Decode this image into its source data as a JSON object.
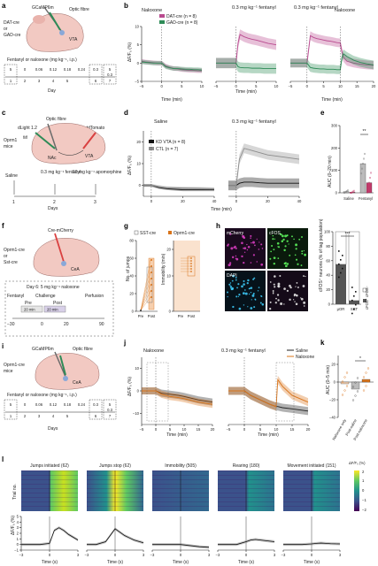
{
  "panels": {
    "a": {
      "label": "a",
      "texts": [
        "DAT-cre",
        "or",
        "GAD-cre",
        "GCaMP6m",
        "Optic fibre",
        "VTA"
      ],
      "dose_label": "Fentanyl or naloxone (mg kg⁻¹, i.p.)",
      "dose_boxes": [
        {
          "top": "5",
          "bottom": "1"
        },
        {
          "top": "0",
          "bottom": "2"
        },
        {
          "top": "0.06",
          "bottom": "3"
        },
        {
          "top": "0.12",
          "bottom": "4"
        },
        {
          "top": "0.18",
          "bottom": "5"
        },
        {
          "top": "0.24",
          "bottom": ""
        },
        {
          "top": "0.3",
          "bottom": "6"
        },
        {
          "top": "5\n0.3",
          "bottom": "7"
        }
      ],
      "day_label": "Day",
      "day_ticks": [
        "1",
        "3",
        "5",
        "7"
      ]
    },
    "b": {
      "label": "b",
      "subtitles": [
        "Naloxone",
        "0.3 mg kg⁻¹\nfentanyl",
        "0.3 mg kg⁻¹\nfentanyl",
        "Naloxone"
      ],
      "legend": [
        "DAT-cre (n = 8)",
        "GAD-cre (n = 8)"
      ],
      "ylabel": "ΔF/F₀ (%)",
      "xlabel": "Time (min)",
      "yticks": [
        "10",
        "5",
        "0",
        "−5"
      ],
      "xticks_1": [
        "−5",
        "0",
        "5",
        "10"
      ],
      "xticks_2": [
        "−5",
        "0",
        "5",
        "10"
      ],
      "xticks_3": [
        "−5",
        "0",
        "5",
        "10",
        "15",
        "20"
      ]
    },
    "c": {
      "label": "c",
      "texts": [
        "Optic fibre",
        "dLight 1.2",
        "Cre-tdTomato",
        "Oprm1",
        "fl/fl",
        "mice",
        "NAc",
        "VTA"
      ],
      "timeline": [
        "Saline",
        "0.3 mg kg⁻¹\nfentanyl",
        "10 mg kg⁻¹\napomorphine"
      ],
      "day_label": "Days",
      "day_ticks": [
        "1",
        "2",
        "3"
      ]
    },
    "d": {
      "label": "d",
      "subtitles": [
        "Saline",
        "0.3 mg kg⁻¹ fentanyl"
      ],
      "legend": [
        "KD VTA (n = 8)",
        "CTL (n = 7)"
      ],
      "ylabel": "ΔF/F₀ (%)",
      "xlabel": "Time (min)",
      "yticks": [
        "20",
        "10",
        "0"
      ],
      "xticks_1": [
        "0",
        "20",
        "40"
      ],
      "xticks_2": [
        "0",
        "20",
        "40"
      ]
    },
    "e": {
      "label": "e",
      "ylabel": "AUC (0–20 min)",
      "yticks": [
        "300",
        "200",
        "100",
        "0"
      ],
      "groups": [
        "Saline",
        "Fentanyl"
      ],
      "sig": "**"
    },
    "f": {
      "label": "f",
      "texts": [
        "Cre-mCherry",
        "Oprm1-cre",
        "or",
        "Sst-cre",
        "CeA"
      ],
      "protocol_title": "Day 6: 5 mg kg⁻¹ naloxone",
      "protocol": [
        "Fentanyl",
        "Challenge",
        "Perfusion",
        "Pre",
        "Post",
        "20 min",
        "20 min"
      ],
      "ticks": [
        "−30",
        "0",
        "20",
        "90"
      ]
    },
    "g": {
      "label": "g",
      "legend": [
        "SST-cre",
        "Oprm1-cre"
      ],
      "ylabel_left": "No. of jumps",
      "ylabel_right": "Immobility (min)",
      "yticks_left": [
        "80",
        "60",
        "40",
        "20",
        "0"
      ],
      "yticks_right": [
        "20",
        "10",
        "0"
      ],
      "xticks": [
        "Pre",
        "Post",
        "Pre",
        "Post"
      ]
    },
    "h": {
      "label": "h",
      "channels": [
        "mCherry",
        "cFOS",
        "DAPI"
      ],
      "ylabel": "cFOS⁺ neurons\n(% of tag population)",
      "yticks": [
        "100",
        "80",
        "60",
        "40",
        "20",
        "0"
      ],
      "groups": [
        "μOR",
        "SST"
      ],
      "legend": [
        "cFOS⁻",
        "cFOS⁺"
      ],
      "sig": "***"
    },
    "i": {
      "label": "i",
      "texts": [
        "GCaMP6m",
        "Optic fibre",
        "Oprm1-cre",
        "mice",
        "CeA"
      ],
      "dose_label": "Fentanyl or naloxone (mg kg⁻¹, i.p.)",
      "dose_boxes": [
        {
          "top": "5",
          "bottom": "1"
        },
        {
          "top": "0",
          "bottom": "2"
        },
        {
          "top": "0.06",
          "bottom": "3"
        },
        {
          "top": "0.12",
          "bottom": "4"
        },
        {
          "top": "0.18",
          "bottom": "5"
        },
        {
          "top": "0.24",
          "bottom": ""
        },
        {
          "top": "0.3",
          "bottom": "6"
        },
        {
          "top": "5\n0.3",
          "bottom": "7"
        }
      ],
      "day_label": "Days"
    },
    "j": {
      "label": "j",
      "subtitles": [
        "Naloxone",
        "0.3 mg kg⁻¹ fentanyl"
      ],
      "legend": [
        "Saline",
        "Naloxone"
      ],
      "ylabel": "ΔF/F₀ (%)",
      "xlabel": "Time (min)",
      "yticks": [
        "10",
        "0",
        "−10"
      ],
      "xticks_1": [
        "−5",
        "0",
        "5",
        "10",
        "15",
        "20"
      ],
      "xticks_2": [
        "−5",
        "0",
        "5",
        "10",
        "15",
        "20"
      ]
    },
    "k": {
      "label": "k",
      "ylabel": "AUC (0–5 min)",
      "yticks": [
        "20",
        "0",
        "−20",
        "−40"
      ],
      "groups": [
        "Naloxone only",
        "Post-saline",
        "Post-naloxone"
      ],
      "sig": "*"
    },
    "l": {
      "label": "l",
      "heatmaps": [
        {
          "title": "Jumps initiated (62)"
        },
        {
          "title": "Jumps stop (62)"
        },
        {
          "title": "Immobility (505)"
        },
        {
          "title": "Rearing (180)"
        },
        {
          "title": "Movement initiated (151)"
        }
      ],
      "colorbar_label": "ΔF/F₀ (%)",
      "colorbar_ticks": [
        "2",
        "1",
        "0",
        "−1",
        "−2"
      ],
      "trial_label": "Trial no.",
      "ylabel": "ΔF/F₀ (%)",
      "xlabel": "Time (s)",
      "yticks": [
        "5",
        "4",
        "3",
        "2",
        "1",
        "0",
        "−1"
      ],
      "xticks": [
        "−3",
        "0",
        "3"
      ]
    }
  },
  "colors": {
    "dat": "#b94a8f",
    "gad": "#2e8b57",
    "kd": "#111111",
    "ctl": "#8c8c8c",
    "saline": "#222222",
    "naloxone": "#d9741a",
    "sst_fill": "#f6cfae"
  },
  "chart_data": [
    {
      "type": "line",
      "panel": "b1",
      "x": [
        -5,
        -4,
        -3,
        -2,
        -1,
        0,
        1,
        2,
        3,
        4,
        5,
        6,
        7,
        8,
        9,
        10
      ],
      "series": [
        {
          "name": "DAT-cre (n = 8)",
          "values": [
            0.5,
            0.3,
            0.2,
            0.1,
            0,
            0,
            -0.8,
            -1.2,
            -1.5,
            -1.6,
            -1.8,
            -1.9,
            -2.0,
            -2.0,
            -2.1,
            -2.1
          ]
        },
        {
          "name": "GAD-cre (n = 8)",
          "values": [
            0.3,
            0.2,
            0.1,
            0,
            0,
            0,
            -1.0,
            -1.3,
            -1.5,
            -1.5,
            -1.6,
            -1.7,
            -1.7,
            -1.8,
            -1.8,
            -1.9
          ]
        }
      ],
      "ylim": [
        -5,
        10
      ],
      "xlim": [
        -5,
        10
      ]
    },
    {
      "type": "line",
      "panel": "b2",
      "x": [
        -5,
        -4,
        -3,
        -2,
        -1,
        0,
        0.5,
        1,
        2,
        3,
        4,
        5,
        6,
        7,
        8,
        9,
        10
      ],
      "series": [
        {
          "name": "DAT-cre (n = 8)",
          "values": [
            0,
            0,
            0,
            0,
            0,
            0,
            5.5,
            7.8,
            7.2,
            6.8,
            6.5,
            6.3,
            6.0,
            5.7,
            5.4,
            5.2,
            5.0
          ]
        },
        {
          "name": "GAD-cre (n = 8)",
          "values": [
            0,
            0,
            0,
            0,
            0,
            0,
            -1.0,
            -1.2,
            -1.3,
            -1.3,
            -1.4,
            -1.4,
            -1.4,
            -1.5,
            -1.5,
            -1.5,
            -1.5
          ]
        }
      ],
      "ylim": [
        -5,
        10
      ],
      "xlim": [
        -5,
        10
      ]
    },
    {
      "type": "line",
      "panel": "b3",
      "x": [
        -5,
        -4,
        -3,
        -2,
        -1,
        0,
        1,
        2,
        3,
        4,
        5,
        6,
        7,
        8,
        9,
        10,
        10.5,
        11,
        12,
        14,
        16,
        18,
        20
      ],
      "series": [
        {
          "name": "DAT-cre (n = 8)",
          "values": [
            0,
            0,
            0,
            0,
            0,
            0,
            7.5,
            7.0,
            6.7,
            6.5,
            6.3,
            6.1,
            6.0,
            5.8,
            5.6,
            5.5,
            3.0,
            1.5,
            0.5,
            0,
            -0.3,
            -0.5,
            -0.6
          ]
        },
        {
          "name": "GAD-cre (n = 8)",
          "values": [
            0,
            0,
            0,
            0,
            0,
            0,
            -1.2,
            -1.4,
            -1.5,
            -1.6,
            -1.6,
            -1.7,
            -1.7,
            -1.7,
            -1.8,
            -1.8,
            1.5,
            2.5,
            1.8,
            0.8,
            0.2,
            -0.2,
            -0.5
          ]
        }
      ],
      "ylim": [
        -5,
        10
      ],
      "xlim": [
        -5,
        20
      ]
    },
    {
      "type": "line",
      "panel": "d1",
      "x": [
        -5,
        0,
        5,
        10,
        20,
        30,
        40
      ],
      "series": [
        {
          "name": "KD VTA (n = 8)",
          "values": [
            0,
            0,
            -1,
            -1.5,
            -2,
            -2,
            -2
          ]
        },
        {
          "name": "CTL (n = 7)",
          "values": [
            0,
            0,
            -0.5,
            -1,
            -1.2,
            -1.3,
            -1.5
          ]
        }
      ],
      "ylim": [
        -5,
        25
      ],
      "xlim": [
        -5,
        40
      ]
    },
    {
      "type": "line",
      "panel": "d2",
      "x": [
        -5,
        0,
        2,
        5,
        10,
        15,
        20,
        30,
        40
      ],
      "series": [
        {
          "name": "KD VTA (n = 8)",
          "values": [
            0,
            0,
            1,
            1.5,
            1.5,
            1.2,
            1.0,
            1.0,
            1.0
          ]
        },
        {
          "name": "CTL (n = 7)",
          "values": [
            0,
            0,
            12,
            17,
            16,
            15,
            14,
            13,
            12
          ]
        }
      ],
      "ylim": [
        -5,
        25
      ],
      "xlim": [
        -5,
        40
      ]
    },
    {
      "type": "bar",
      "panel": "e",
      "categories": [
        "Saline",
        "Fentanyl"
      ],
      "series": [
        {
          "name": "CTL (n = 7)",
          "values": [
            5,
            130
          ]
        },
        {
          "name": "KD VTA (n = 8)",
          "values": [
            3,
            45
          ]
        }
      ],
      "ylim": [
        0,
        300
      ]
    },
    {
      "type": "bar",
      "panel": "h",
      "categories": [
        "μOR",
        "SST"
      ],
      "series": [
        {
          "name": "cFOS⁺",
          "values": [
            55,
            5
          ]
        },
        {
          "name": "cFOS⁻",
          "values": [
            45,
            95
          ]
        }
      ],
      "ylim": [
        0,
        100
      ]
    },
    {
      "type": "line",
      "panel": "j1",
      "x": [
        -5,
        -3,
        0,
        2,
        5,
        8,
        10,
        15,
        20
      ],
      "series": [
        {
          "name": "Saline",
          "values": [
            0,
            0,
            0,
            -1,
            -1.5,
            -2,
            -2.5,
            -4,
            -5
          ]
        },
        {
          "name": "Naloxone",
          "values": [
            0,
            0,
            0,
            -1.5,
            -2.5,
            -3,
            -3.5,
            -5,
            -6
          ]
        }
      ],
      "ylim": [
        -15,
        15
      ],
      "xlim": [
        -5,
        20
      ]
    },
    {
      "type": "line",
      "panel": "j2",
      "x": [
        -5,
        0,
        2,
        5,
        8,
        10,
        10.5,
        12,
        15,
        20
      ],
      "series": [
        {
          "name": "Saline",
          "values": [
            0,
            0,
            -2,
            -4,
            -6,
            -7,
            -7,
            -7.5,
            -8,
            -9
          ]
        },
        {
          "name": "Naloxone",
          "values": [
            0,
            0,
            -2,
            -4,
            -6,
            -7,
            5,
            2,
            -2,
            -5
          ]
        }
      ],
      "ylim": [
        -15,
        15
      ],
      "xlim": [
        -5,
        20
      ]
    },
    {
      "type": "bar",
      "panel": "k",
      "categories": [
        "Naloxone only",
        "Post-saline",
        "Post-naloxone"
      ],
      "values": [
        -2,
        -8,
        3
      ],
      "ylim": [
        -40,
        30
      ]
    },
    {
      "type": "line",
      "panel": "l",
      "x": [
        -3,
        -2,
        -1,
        0,
        0.5,
        1,
        1.5,
        2,
        3
      ],
      "series": [
        {
          "name": "Jumps initiated (62)",
          "values": [
            0,
            0,
            0,
            0.2,
            2.5,
            3.0,
            2.5,
            1.8,
            0.8
          ]
        },
        {
          "name": "Jumps stop (62)",
          "values": [
            0,
            0,
            0.5,
            2.8,
            2.2,
            1.6,
            1.2,
            0.8,
            0.3
          ]
        },
        {
          "name": "Immobility (505)",
          "values": [
            0,
            0,
            0,
            0,
            -0.1,
            -0.2,
            -0.3,
            -0.4,
            -0.5
          ]
        },
        {
          "name": "Rearing (180)",
          "values": [
            0,
            0,
            0,
            0.5,
            0.8,
            0.9,
            0.8,
            0.7,
            0.5
          ]
        },
        {
          "name": "Movement initiated (151)",
          "values": [
            0,
            0,
            0,
            0.1,
            0.2,
            0.25,
            0.2,
            0.15,
            0.1
          ]
        }
      ],
      "ylim": [
        -1,
        5
      ],
      "xlim": [
        -3,
        3
      ]
    }
  ]
}
